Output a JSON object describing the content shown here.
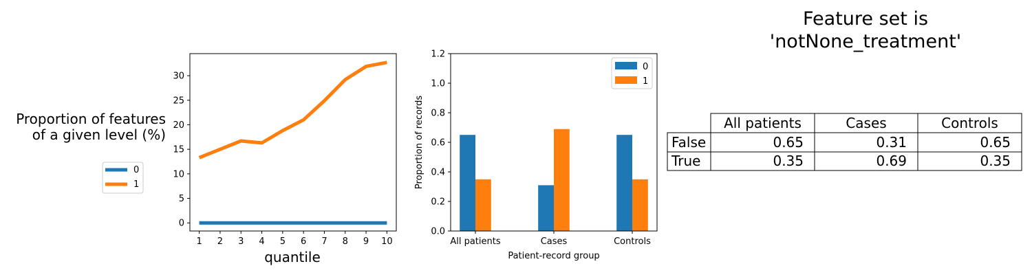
{
  "colors": {
    "level_0": "#1f77b4",
    "level_1": "#ff7f0e"
  },
  "chart_data": [
    {
      "type": "line",
      "ylabel": "Proportion of features\nof a given level (%)",
      "xlabel": "quantile",
      "x": [
        1,
        2,
        3,
        4,
        5,
        6,
        7,
        8,
        9,
        10
      ],
      "xticks": [
        "1",
        "2",
        "3",
        "4",
        "5",
        "6",
        "7",
        "8",
        "9",
        "10"
      ],
      "yticks": [
        "0",
        "5",
        "10",
        "15",
        "20",
        "25",
        "30"
      ],
      "ylim": [
        -1.65,
        34.5
      ],
      "xlim": [
        0.55,
        10.45
      ],
      "legend_position": "left",
      "series": [
        {
          "name": "0",
          "values": [
            0,
            0,
            0,
            0,
            0,
            0,
            0,
            0,
            0,
            0
          ]
        },
        {
          "name": "1",
          "values": [
            13.3,
            15.0,
            16.7,
            16.3,
            18.8,
            21.0,
            24.9,
            29.2,
            31.9,
            32.7
          ]
        }
      ],
      "grid": false
    },
    {
      "type": "bar",
      "ylabel": "Proportion of records",
      "xlabel": "Patient-record group",
      "categories": [
        "All patients",
        "Cases",
        "Controls"
      ],
      "yticks": [
        "0.0",
        "0.2",
        "0.4",
        "0.6",
        "0.8",
        "1.0",
        "1.2"
      ],
      "ylim": [
        0,
        1.2
      ],
      "legend_position": "top-right",
      "series": [
        {
          "name": "0",
          "values": [
            0.65,
            0.31,
            0.65
          ]
        },
        {
          "name": "1",
          "values": [
            0.35,
            0.69,
            0.35
          ]
        }
      ],
      "grid": false
    },
    {
      "type": "table",
      "title": "Feature set is\n'notNone_treatment'",
      "columns": [
        "All patients",
        "Cases",
        "Controls"
      ],
      "rows": [
        {
          "label": "False",
          "values": [
            "0.65",
            "0.31",
            "0.65"
          ]
        },
        {
          "label": "True",
          "values": [
            "0.35",
            "0.69",
            "0.35"
          ]
        }
      ]
    }
  ]
}
